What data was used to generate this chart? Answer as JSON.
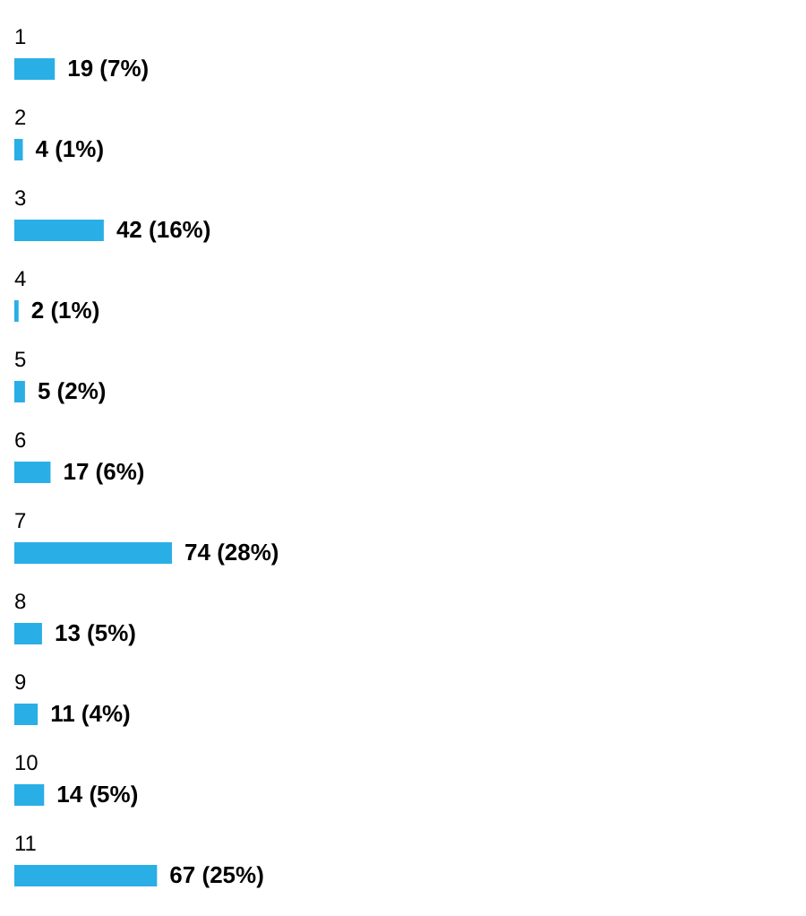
{
  "chart_data": {
    "type": "bar",
    "orientation": "horizontal",
    "categories": [
      "1",
      "2",
      "3",
      "4",
      "5",
      "6",
      "7",
      "8",
      "9",
      "10",
      "11"
    ],
    "values": [
      19,
      4,
      42,
      2,
      5,
      17,
      74,
      13,
      11,
      14,
      67
    ],
    "color": "#2aaee6",
    "value_labels": [
      "19 (7%)",
      "4 (1%)",
      "42 (16%)",
      "2 (1%)",
      "5 (2%)",
      "17 (6%)",
      "74 (28%)",
      "13 (5%)",
      "11 (4%)",
      "14 (5%)",
      "67 (25%)"
    ]
  }
}
